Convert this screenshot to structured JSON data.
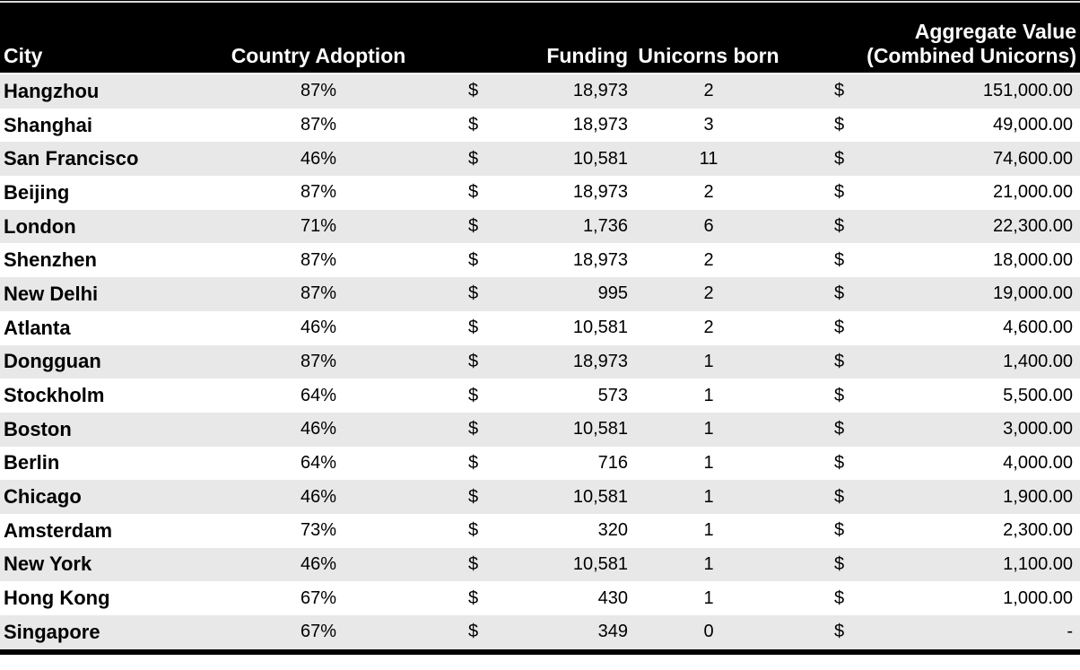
{
  "chart_data": {
    "type": "table",
    "columns": [
      "City",
      "Country Adoption",
      "Funding",
      "Unicorns born",
      "Aggregate Value (Combined Unicorns)"
    ],
    "rows": [
      [
        "Hangzhou",
        "87%",
        18973,
        2,
        151000.0
      ],
      [
        "Shanghai",
        "87%",
        18973,
        3,
        49000.0
      ],
      [
        "San Francisco",
        "46%",
        10581,
        11,
        74600.0
      ],
      [
        "Beijing",
        "87%",
        18973,
        2,
        21000.0
      ],
      [
        "London",
        "71%",
        1736,
        6,
        22300.0
      ],
      [
        "Shenzhen",
        "87%",
        18973,
        2,
        18000.0
      ],
      [
        "New Delhi",
        "87%",
        995,
        2,
        19000.0
      ],
      [
        "Atlanta",
        "46%",
        10581,
        2,
        4600.0
      ],
      [
        "Dongguan",
        "87%",
        18973,
        1,
        1400.0
      ],
      [
        "Stockholm",
        "64%",
        573,
        1,
        5500.0
      ],
      [
        "Boston",
        "46%",
        10581,
        1,
        3000.0
      ],
      [
        "Berlin",
        "64%",
        716,
        1,
        4000.0
      ],
      [
        "Chicago",
        "46%",
        10581,
        1,
        1900.0
      ],
      [
        "Amsterdam",
        "73%",
        320,
        1,
        2300.0
      ],
      [
        "New York",
        "46%",
        10581,
        1,
        1100.0
      ],
      [
        "Hong Kong",
        "67%",
        430,
        1,
        1000.0
      ],
      [
        "Singapore",
        "67%",
        349,
        0,
        null
      ]
    ]
  },
  "header": {
    "city": "City",
    "adoption": "Country Adoption",
    "funding": "Funding",
    "unicorns": "Unicorns born",
    "aggregate_line1": "Aggregate Value",
    "aggregate_line2": "(Combined Unicorns)"
  },
  "currency_symbol": "$",
  "empty_value": "-",
  "rows": [
    {
      "city": "Hangzhou",
      "adoption": "87%",
      "funding": "18,973",
      "unicorns": "2",
      "aggregate": "151,000.00"
    },
    {
      "city": "Shanghai",
      "adoption": "87%",
      "funding": "18,973",
      "unicorns": "3",
      "aggregate": "49,000.00"
    },
    {
      "city": "San Francisco",
      "adoption": "46%",
      "funding": "10,581",
      "unicorns": "11",
      "aggregate": "74,600.00"
    },
    {
      "city": "Beijing",
      "adoption": "87%",
      "funding": "18,973",
      "unicorns": "2",
      "aggregate": "21,000.00"
    },
    {
      "city": "London",
      "adoption": "71%",
      "funding": "1,736",
      "unicorns": "6",
      "aggregate": "22,300.00"
    },
    {
      "city": "Shenzhen",
      "adoption": "87%",
      "funding": "18,973",
      "unicorns": "2",
      "aggregate": "18,000.00"
    },
    {
      "city": "New Delhi",
      "adoption": "87%",
      "funding": "995",
      "unicorns": "2",
      "aggregate": "19,000.00"
    },
    {
      "city": "Atlanta",
      "adoption": "46%",
      "funding": "10,581",
      "unicorns": "2",
      "aggregate": "4,600.00"
    },
    {
      "city": "Dongguan",
      "adoption": "87%",
      "funding": "18,973",
      "unicorns": "1",
      "aggregate": "1,400.00"
    },
    {
      "city": "Stockholm",
      "adoption": "64%",
      "funding": "573",
      "unicorns": "1",
      "aggregate": "5,500.00"
    },
    {
      "city": "Boston",
      "adoption": "46%",
      "funding": "10,581",
      "unicorns": "1",
      "aggregate": "3,000.00"
    },
    {
      "city": "Berlin",
      "adoption": "64%",
      "funding": "716",
      "unicorns": "1",
      "aggregate": "4,000.00"
    },
    {
      "city": "Chicago",
      "adoption": "46%",
      "funding": "10,581",
      "unicorns": "1",
      "aggregate": "1,900.00"
    },
    {
      "city": "Amsterdam",
      "adoption": "73%",
      "funding": "320",
      "unicorns": "1",
      "aggregate": "2,300.00"
    },
    {
      "city": "New York",
      "adoption": "46%",
      "funding": "10,581",
      "unicorns": "1",
      "aggregate": "1,100.00"
    },
    {
      "city": "Hong Kong",
      "adoption": "67%",
      "funding": "430",
      "unicorns": "1",
      "aggregate": "1,000.00"
    },
    {
      "city": "Singapore",
      "adoption": "67%",
      "funding": "349",
      "unicorns": "0",
      "aggregate": "-"
    }
  ],
  "colors": {
    "header_bg": "#000000",
    "header_text": "#ffffff",
    "row_stripe": "#e8e8e8",
    "row_base": "#ffffff",
    "text": "#000000",
    "bottom_border": "#000000"
  }
}
